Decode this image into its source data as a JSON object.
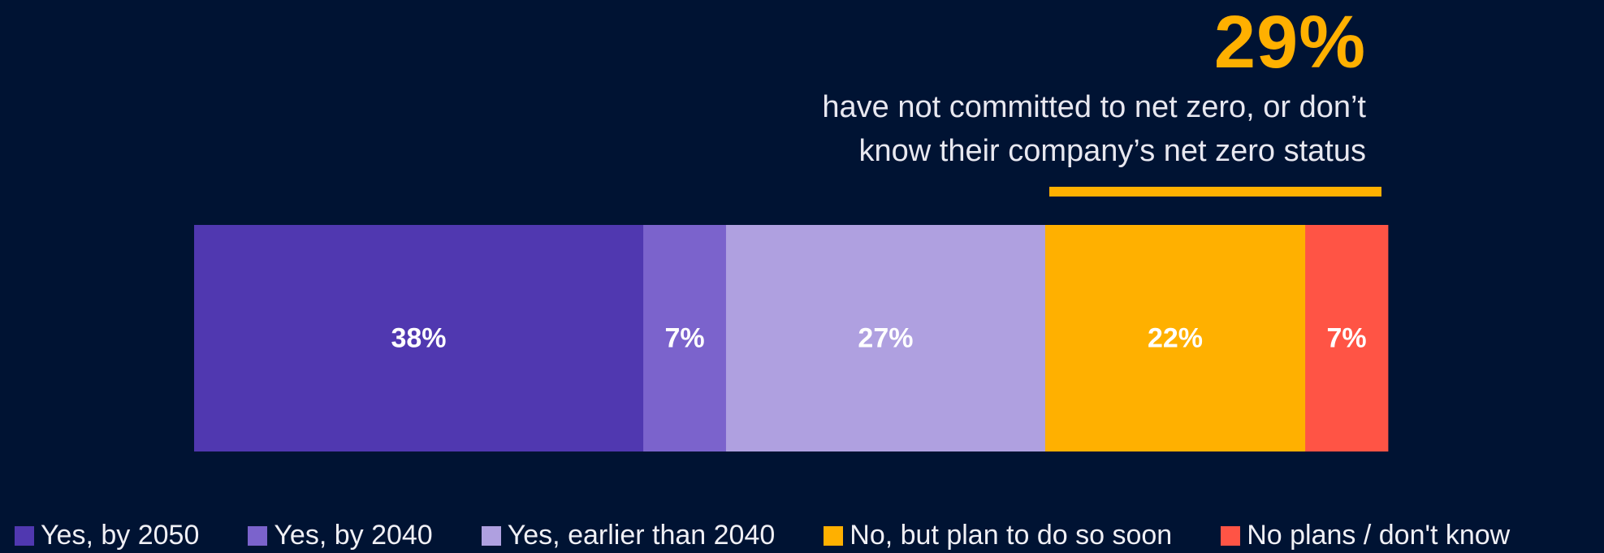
{
  "callout": {
    "value": "29%",
    "text_line1": "have not committed to net zero, or don’t",
    "text_line2": "know their company’s net zero status",
    "color": "#FFB000"
  },
  "chart_data": {
    "type": "bar",
    "orientation": "horizontal-stacked",
    "title": "",
    "xlabel": "",
    "ylabel": "",
    "xlim": [
      0,
      100
    ],
    "grid": false,
    "legend_position": "bottom",
    "series": [
      {
        "name": "Yes, by 2050",
        "value": 38,
        "label": "38%",
        "color": "#5038B0"
      },
      {
        "name": "Yes, by 2040",
        "value": 7,
        "label": "7%",
        "color": "#7B63CC"
      },
      {
        "name": "Yes, earlier than 2040",
        "value": 27,
        "label": "27%",
        "color": "#AFA0E0"
      },
      {
        "name": "No, but plan to do so soon",
        "value": 22,
        "label": "22%",
        "color": "#FFB000"
      },
      {
        "name": "No plans / don't know",
        "value": 7,
        "label": "7%",
        "color": "#FF5445"
      }
    ]
  }
}
